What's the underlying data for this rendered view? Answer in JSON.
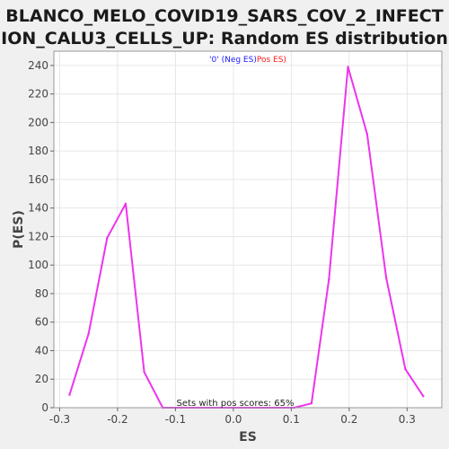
{
  "chart_data": {
    "type": "line",
    "title_lines": [
      "BLANCO_MELO_COVID19_SARS_COV_2_INFECT",
      "ION_CALU3_CELLS_UP: Random ES distribution"
    ],
    "xlabel": "ES",
    "ylabel": "P(ES)",
    "xlim": [
      -0.31,
      0.36
    ],
    "ylim": [
      0,
      250
    ],
    "xticks": [
      -0.3,
      -0.2,
      -0.1,
      0.0,
      0.1,
      0.2,
      0.3
    ],
    "xtick_labels": [
      "-0.3",
      "-0.2",
      "-0.1",
      "0.0",
      "0.1",
      "0.2",
      "0.3"
    ],
    "yticks": [
      0,
      20,
      40,
      60,
      80,
      100,
      120,
      140,
      160,
      180,
      200,
      220,
      240
    ],
    "legend": {
      "neg_label": "'0' (Neg ES)",
      "pos_label": "Pos ES)",
      "neg_color": "#1a1aff",
      "pos_color": "#ff1a1a"
    },
    "annotation": "Sets with pos scores: 65%",
    "series": [
      {
        "color": "#ee33ee",
        "x": [
          -0.283,
          -0.25,
          -0.218,
          -0.186,
          -0.154,
          -0.122,
          -0.09,
          0.105,
          0.135,
          0.165,
          0.198,
          0.231,
          0.264,
          0.297,
          0.328
        ],
        "y": [
          9,
          52,
          119,
          143,
          25,
          0,
          0,
          0,
          3,
          90,
          239,
          192,
          91,
          27,
          8
        ]
      }
    ]
  }
}
